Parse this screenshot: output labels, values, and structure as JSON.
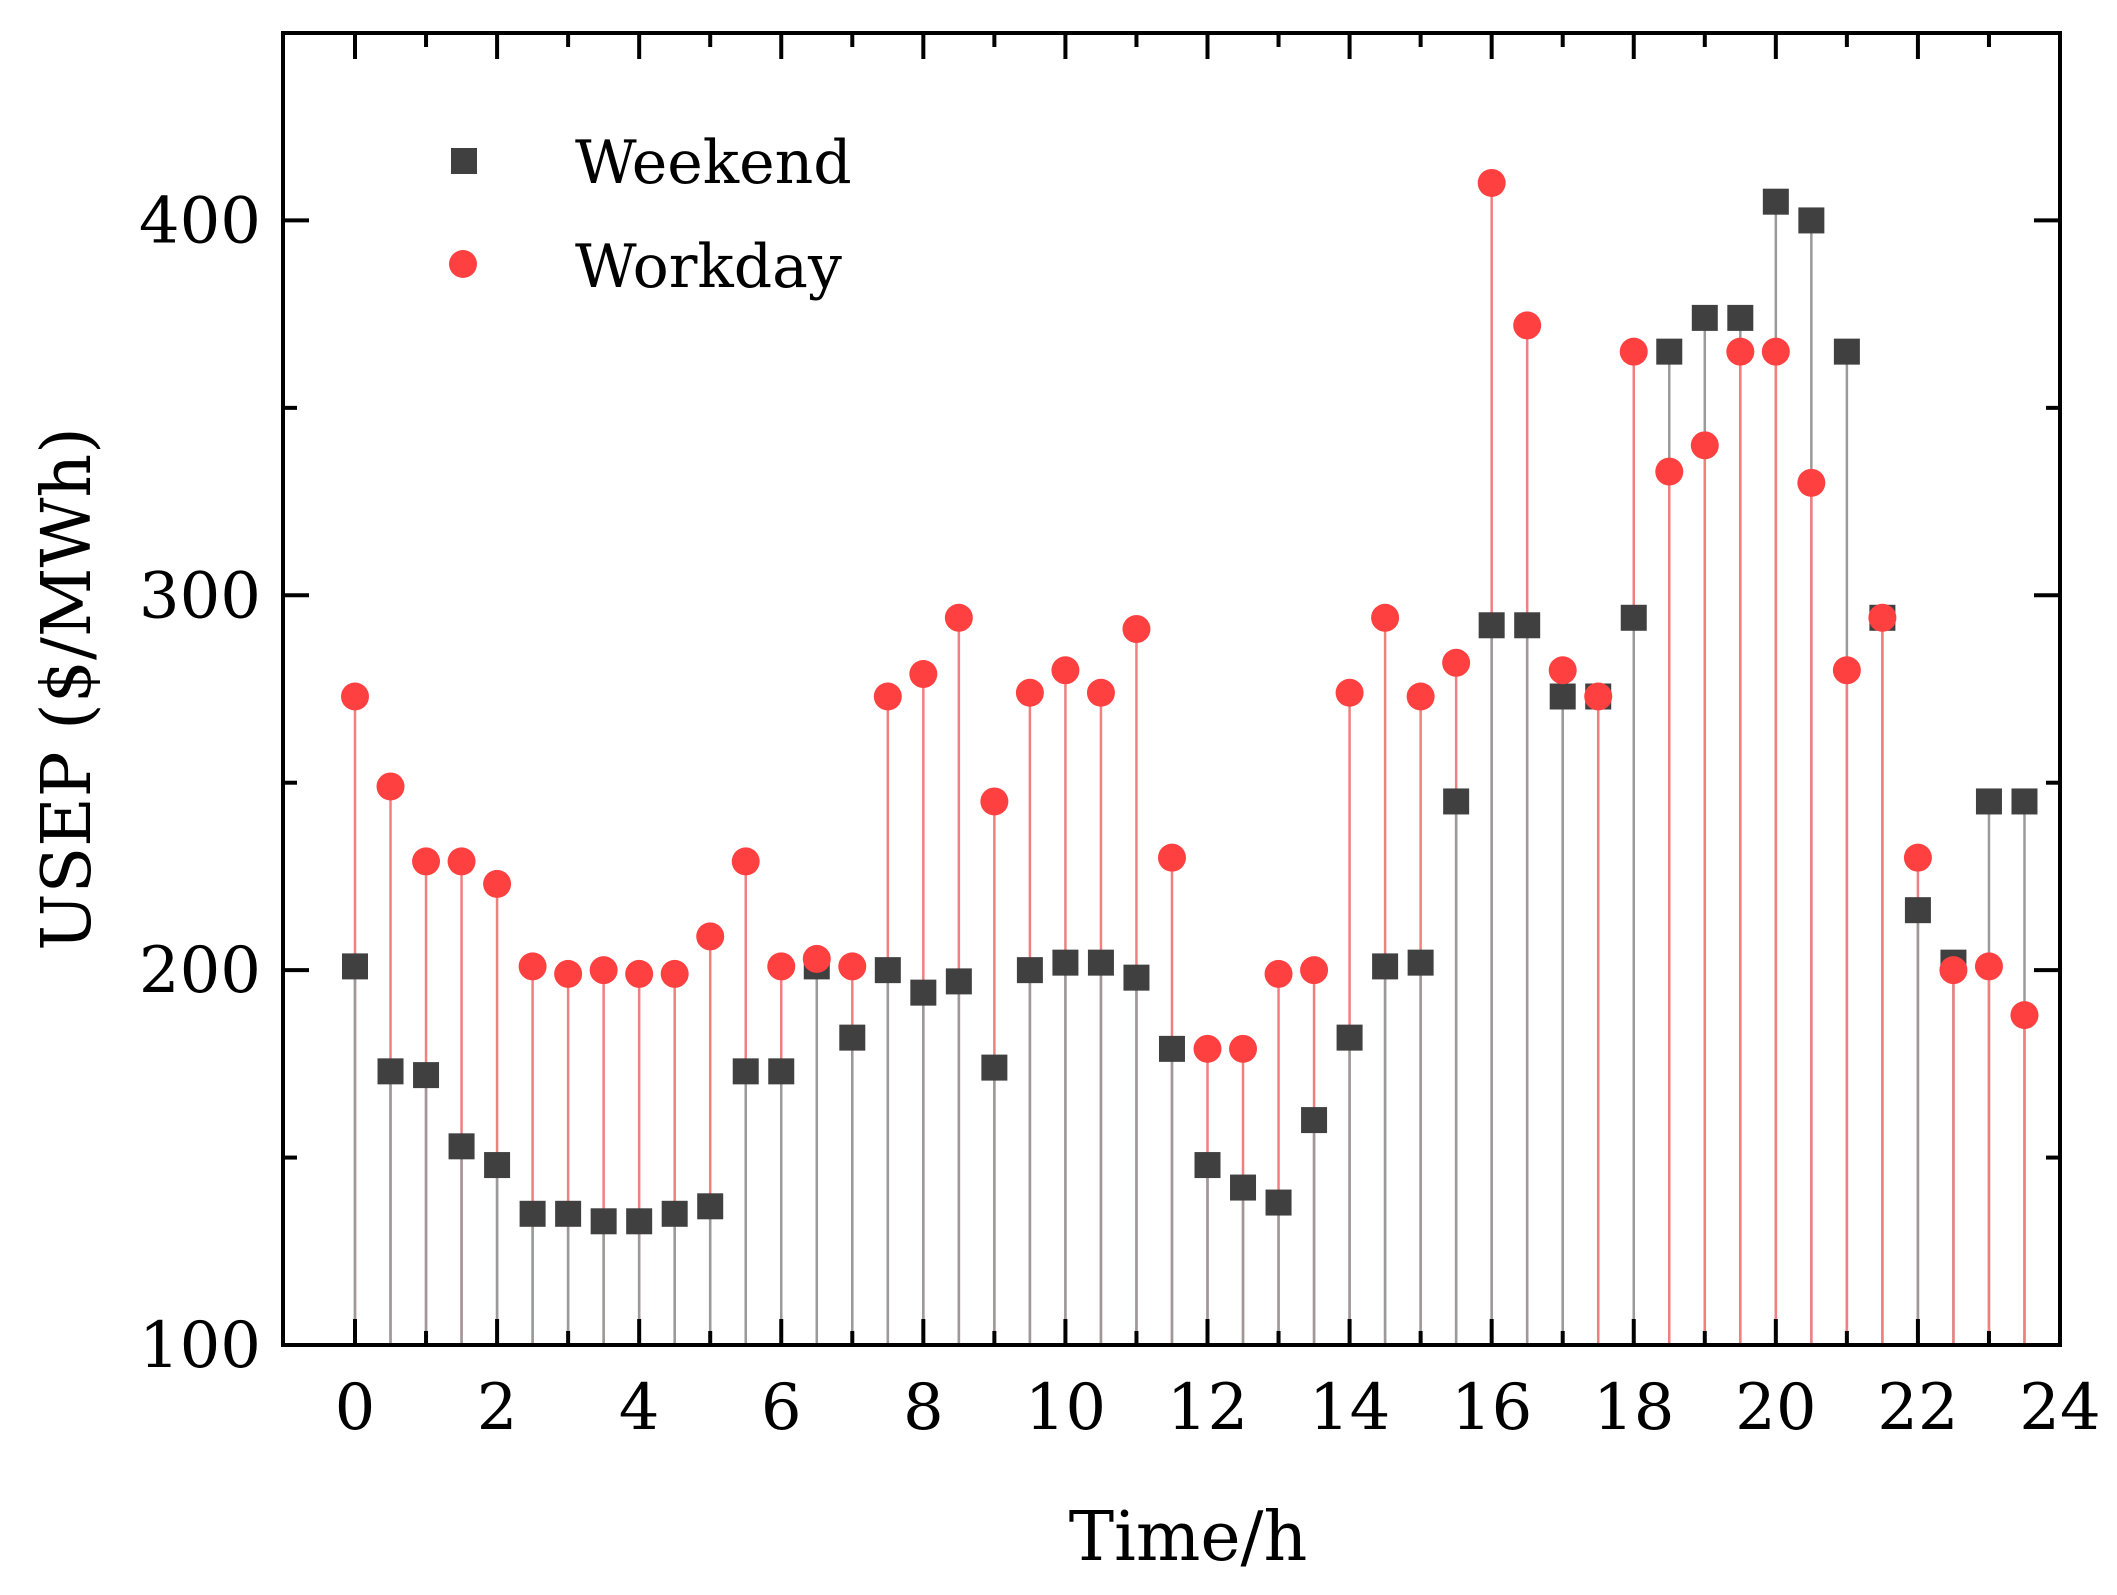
{
  "chart_data": {
    "type": "scatter",
    "style": "stem",
    "title": "",
    "xlabel": "Time/h",
    "ylabel": "USEP ($/MWh)",
    "xlim": [
      -1,
      24.5
    ],
    "ylim": [
      100,
      450
    ],
    "xticks": [
      0,
      2,
      4,
      6,
      8,
      10,
      12,
      14,
      16,
      18,
      20,
      22,
      24
    ],
    "yticks": [
      100,
      200,
      300,
      400
    ],
    "grid": false,
    "legend_position": "top-left",
    "x": [
      0,
      0.5,
      1,
      1.5,
      2,
      2.5,
      3,
      3.5,
      4,
      4.5,
      5,
      5.5,
      6,
      6.5,
      7,
      7.5,
      8,
      8.5,
      9,
      9.5,
      10,
      10.5,
      11,
      11.5,
      12,
      12.5,
      13,
      13.5,
      14,
      14.5,
      15,
      15.5,
      16,
      16.5,
      17,
      17.5,
      18,
      18.5,
      19,
      19.5,
      20,
      20.5,
      21,
      21.5,
      22,
      22.5,
      23,
      23.5
    ],
    "series": [
      {
        "name": "Weekend",
        "marker": "square",
        "color": "#404040",
        "values": [
          201,
          173,
          172,
          153,
          148,
          135,
          135,
          133,
          133,
          135,
          137,
          173,
          173,
          201,
          182,
          200,
          194,
          197,
          174,
          200,
          202,
          202,
          198,
          179,
          148,
          142,
          138,
          160,
          182,
          201,
          202,
          245,
          292,
          292,
          273,
          273,
          294,
          365,
          374,
          374,
          405,
          400,
          365,
          294,
          216,
          202,
          245,
          245
        ]
      },
      {
        "name": "Workday",
        "marker": "circle",
        "color": "#ff4040",
        "values": [
          273,
          249,
          229,
          229,
          223,
          201,
          199,
          200,
          199,
          199,
          209,
          229,
          201,
          203,
          201,
          273,
          279,
          294,
          245,
          274,
          280,
          274,
          291,
          230,
          179,
          179,
          199,
          200,
          274,
          294,
          273,
          282,
          410,
          372,
          280,
          273,
          365,
          333,
          340,
          365,
          365,
          330,
          280,
          294,
          230,
          200,
          201,
          188
        ]
      }
    ]
  }
}
